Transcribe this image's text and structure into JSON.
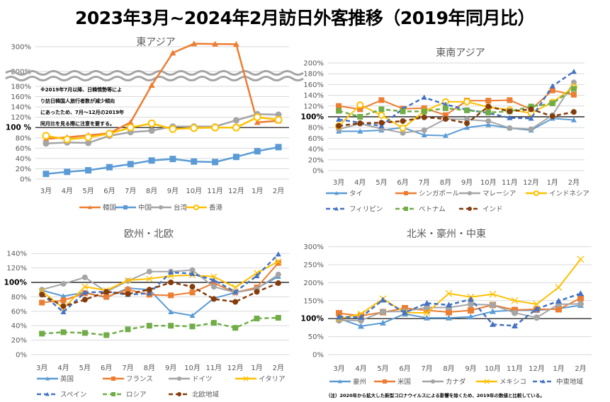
{
  "title": "2023年3月~2024年2月訪日外客推移（2019年同月比）",
  "note_east_asia": [
    "※2019年7月以降、日韓情勢等によ",
    "り訪日韓国人旅行者数が減少傾向",
    "にあったため、7月～12月の2019年",
    "同月比を見る際に注意を要する。"
  ],
  "footnote": "（注）2020年から拡大した新型コロナウイルスによる影響を除くため、2019年の数値と比較している。",
  "chart_data": [
    {
      "type": "line",
      "title": "東アジア",
      "categories": [
        "3月",
        "4月",
        "5月",
        "6月",
        "7月",
        "8月",
        "9月",
        "10月",
        "11月",
        "12月",
        "1月",
        "2月"
      ],
      "yticks": [
        "0%",
        "20%",
        "40%",
        "60%",
        "80%",
        "100 %",
        "120%",
        "140%",
        "160%",
        "180%",
        "200%",
        "300%"
      ],
      "ylim": [
        0,
        320
      ],
      "axis_break": [
        190,
        200
      ],
      "reference_line": 100,
      "legend_position": "bottom",
      "series": [
        {
          "name": "韓国",
          "color": "#ED7D31",
          "marker": "triangle",
          "dash": false,
          "values": [
            78,
            81,
            85,
            89,
            110,
            182,
            275,
            312,
            311,
            310,
            110,
            113
          ]
        },
        {
          "name": "中国",
          "color": "#5B9BD5",
          "marker": "square",
          "dash": false,
          "values": [
            10,
            14,
            17,
            23,
            29,
            36,
            39,
            34,
            33,
            43,
            54,
            62
          ]
        },
        {
          "name": "台湾",
          "color": "#A5A5A5",
          "marker": "circle",
          "dash": false,
          "values": [
            69,
            71,
            70,
            84,
            91,
            94,
            102,
            102,
            102,
            114,
            126,
            125
          ]
        },
        {
          "name": "香港",
          "color": "#FFC000",
          "marker": "ring",
          "dash": false,
          "values": [
            84,
            77,
            81,
            88,
            100,
            108,
            97,
            99,
            100,
            100,
            120,
            115
          ]
        }
      ]
    },
    {
      "type": "line",
      "title": "東南アジア",
      "categories": [
        "3月",
        "4月",
        "5月",
        "6月",
        "7月",
        "8月",
        "9月",
        "10月",
        "11月",
        "12月",
        "1月",
        "2月"
      ],
      "yticks": [
        "0%",
        "20%",
        "40%",
        "60%",
        "80%",
        "100%",
        "120%",
        "140%",
        "160%",
        "180%",
        "200%"
      ],
      "ylim": [
        0,
        200
      ],
      "reference_line": 100,
      "legend_position": "bottom",
      "series": [
        {
          "name": "タイ",
          "color": "#5B9BD5",
          "marker": "triangle",
          "dash": false,
          "values": [
            73,
            73,
            75,
            80,
            66,
            65,
            80,
            85,
            79,
            75,
            97,
            94
          ]
        },
        {
          "name": "シンガポール",
          "color": "#ED7D31",
          "marker": "square",
          "dash": false,
          "values": [
            120,
            114,
            131,
            115,
            116,
            103,
            130,
            130,
            131,
            114,
            149,
            141
          ]
        },
        {
          "name": "マレーシア",
          "color": "#A5A5A5",
          "marker": "circle",
          "dash": false,
          "values": [
            77,
            87,
            78,
            70,
            75,
            96,
            95,
            92,
            79,
            77,
            103,
            164
          ]
        },
        {
          "name": "インドネシア",
          "color": "#FFC000",
          "marker": "ring",
          "dash": false,
          "values": [
            83,
            122,
            103,
            79,
            110,
            128,
            128,
            118,
            113,
            107,
            127,
            155
          ]
        },
        {
          "name": "フィリピン",
          "color": "#4472C4",
          "marker": "triangle",
          "dash": true,
          "values": [
            95,
            89,
            83,
            115,
            136,
            123,
            113,
            107,
            98,
            97,
            157,
            184
          ]
        },
        {
          "name": "ベトナム",
          "color": "#70AD47",
          "marker": "square",
          "dash": true,
          "values": [
            111,
            100,
            114,
            110,
            110,
            116,
            112,
            108,
            110,
            119,
            125,
            152
          ]
        },
        {
          "name": "インド",
          "color": "#843C0C",
          "marker": "circle",
          "dash": true,
          "values": [
            83,
            88,
            89,
            92,
            99,
            96,
            88,
            119,
            110,
            114,
            101,
            109
          ]
        }
      ]
    },
    {
      "type": "line",
      "title": "欧州・北欧",
      "categories": [
        "3月",
        "4月",
        "5月",
        "6月",
        "7月",
        "8月",
        "9月",
        "10月",
        "11月",
        "12月",
        "1月",
        "2月"
      ],
      "yticks": [
        "0%",
        "20%",
        "40%",
        "60%",
        "80%",
        "100%",
        "120%",
        "140%"
      ],
      "ylim": [
        0,
        140
      ],
      "reference_line": 100,
      "legend_position": "bottom",
      "series": [
        {
          "name": "英国",
          "color": "#5B9BD5",
          "marker": "triangle",
          "dash": false,
          "values": [
            89,
            81,
            86,
            79,
            92,
            90,
            59,
            54,
            78,
            86,
            92,
            108
          ]
        },
        {
          "name": "フランス",
          "color": "#ED7D31",
          "marker": "square",
          "dash": false,
          "values": [
            72,
            75,
            85,
            80,
            90,
            83,
            82,
            86,
            99,
            86,
            93,
            127
          ]
        },
        {
          "name": "ドイツ",
          "color": "#A5A5A5",
          "marker": "circle",
          "dash": false,
          "values": [
            90,
            98,
            107,
            87,
            102,
            115,
            115,
            117,
            94,
            86,
            91,
            111
          ]
        },
        {
          "name": "イタリア",
          "color": "#FFC000",
          "marker": "cross",
          "dash": false,
          "values": [
            88,
            64,
            94,
            89,
            103,
            105,
            109,
            110,
            108,
            93,
            113,
            129
          ]
        },
        {
          "name": "スペイン",
          "color": "#4472C4",
          "marker": "triangle",
          "dash": true,
          "values": [
            84,
            59,
            86,
            87,
            83,
            85,
            114,
            112,
            103,
            87,
            109,
            139
          ]
        },
        {
          "name": "ロシア",
          "color": "#70AD47",
          "marker": "square",
          "dash": true,
          "values": [
            29,
            31,
            30,
            27,
            35,
            40,
            40,
            39,
            44,
            37,
            50,
            51
          ]
        },
        {
          "name": "北欧地域",
          "color": "#843C0C",
          "marker": "circle",
          "dash": true,
          "values": [
            83,
            67,
            76,
            87,
            84,
            90,
            100,
            94,
            77,
            73,
            87,
            99
          ]
        }
      ]
    },
    {
      "type": "line",
      "title": "北米・豪州・中東",
      "categories": [
        "3月",
        "4月",
        "5月",
        "6月",
        "7月",
        "8月",
        "9月",
        "10月",
        "11月",
        "12月",
        "1月",
        "2月"
      ],
      "yticks": [
        "0%",
        "50%",
        "100%",
        "150%",
        "200%",
        "250%",
        "300%"
      ],
      "ylim": [
        0,
        300
      ],
      "reference_line": 100,
      "legend_position": "bottom",
      "series": [
        {
          "name": "豪州",
          "color": "#5B9BD5",
          "marker": "triangle",
          "dash": false,
          "values": [
            100,
            79,
            88,
            113,
            102,
            102,
            105,
            120,
            123,
            123,
            128,
            137
          ]
        },
        {
          "name": "米国",
          "color": "#ED7D31",
          "marker": "square",
          "dash": false,
          "values": [
            115,
            108,
            118,
            129,
            123,
            118,
            123,
            138,
            124,
            126,
            126,
            157
          ]
        },
        {
          "name": "カナダ",
          "color": "#A5A5A5",
          "marker": "circle",
          "dash": false,
          "values": [
            95,
            95,
            119,
            120,
            131,
            131,
            140,
            138,
            116,
            103,
            140,
            141
          ]
        },
        {
          "name": "メキシコ",
          "color": "#FFC000",
          "marker": "cross",
          "dash": false,
          "values": [
            100,
            113,
            155,
            117,
            116,
            170,
            160,
            168,
            150,
            140,
            187,
            265
          ]
        },
        {
          "name": "中東地域",
          "color": "#4472C4",
          "marker": "triangle",
          "dash": true,
          "values": [
            105,
            104,
            152,
            117,
            143,
            138,
            154,
            84,
            80,
            127,
            149,
            170
          ]
        }
      ]
    }
  ]
}
